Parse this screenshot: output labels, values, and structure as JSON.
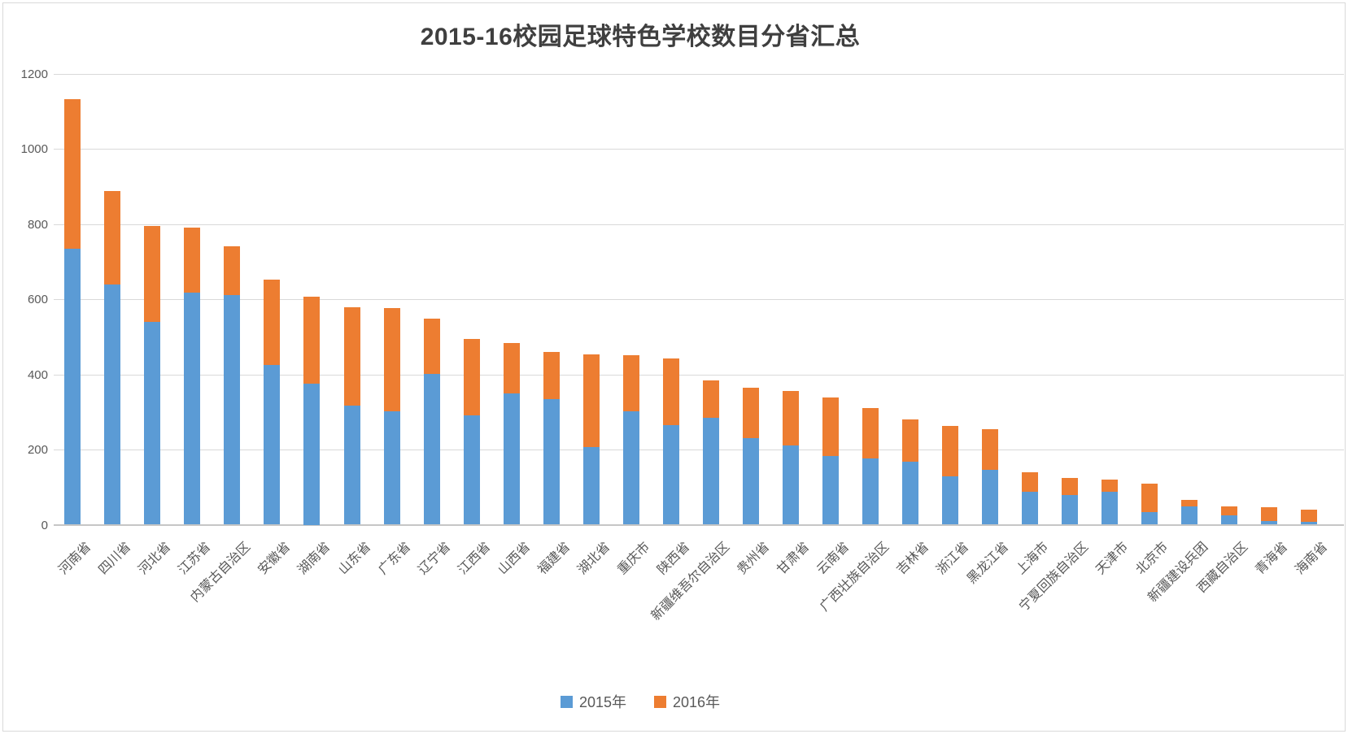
{
  "title": "2015-16校园足球特色学校数目分省汇总",
  "chart_data": {
    "type": "bar",
    "stacked": true,
    "title": "2015-16校园足球特色学校数目分省汇总",
    "xlabel": "",
    "ylabel": "",
    "ylim": [
      0,
      1200
    ],
    "ytick_interval": 200,
    "yticks": [
      "0",
      "200",
      "400",
      "600",
      "800",
      "1000",
      "1200"
    ],
    "grid": true,
    "legend_position": "bottom",
    "categories": [
      "河南省",
      "四川省",
      "河北省",
      "江苏省",
      "内蒙古自治区",
      "安徽省",
      "湖南省",
      "山东省",
      "广东省",
      "辽宁省",
      "江西省",
      "山西省",
      "福建省",
      "湖北省",
      "重庆市",
      "陕西省",
      "新疆维吾尔自治区",
      "贵州省",
      "甘肃省",
      "云南省",
      "广西壮族自治区",
      "吉林省",
      "浙江省",
      "黑龙江省",
      "上海市",
      "宁夏回族自治区",
      "天津市",
      "北京市",
      "新疆建设兵团",
      "西藏自治区",
      "青海省",
      "海南省"
    ],
    "series": [
      {
        "name": "2015年",
        "color": "#5B9BD5",
        "values": [
          735,
          640,
          540,
          618,
          612,
          425,
          375,
          317,
          301,
          401,
          291,
          350,
          335,
          207,
          301,
          265,
          284,
          231,
          211,
          182,
          177,
          167,
          129,
          145,
          88,
          79,
          87,
          33,
          48,
          25,
          10,
          8
        ]
      },
      {
        "name": "2016年",
        "color": "#ED7D31",
        "values": [
          397,
          249,
          255,
          174,
          129,
          227,
          233,
          262,
          275,
          147,
          203,
          133,
          125,
          247,
          150,
          178,
          100,
          133,
          145,
          157,
          134,
          113,
          135,
          109,
          51,
          46,
          34,
          77,
          18,
          24,
          36,
          32
        ]
      }
    ],
    "totals": [
      1132,
      889,
      795,
      792,
      741,
      652,
      608,
      579,
      576,
      548,
      494,
      483,
      460,
      454,
      451,
      443,
      384,
      364,
      356,
      339,
      311,
      280,
      264,
      254,
      139,
      125,
      121,
      110,
      66,
      49,
      46,
      40
    ]
  },
  "colors": {
    "series_2015": "#5B9BD5",
    "series_2016": "#ED7D31",
    "gridline": "#D9D9D9",
    "axis_line": "#C6C6C6",
    "axis_text": "#595959",
    "title_text": "#3F3F3F",
    "background": "#FFFFFF"
  }
}
